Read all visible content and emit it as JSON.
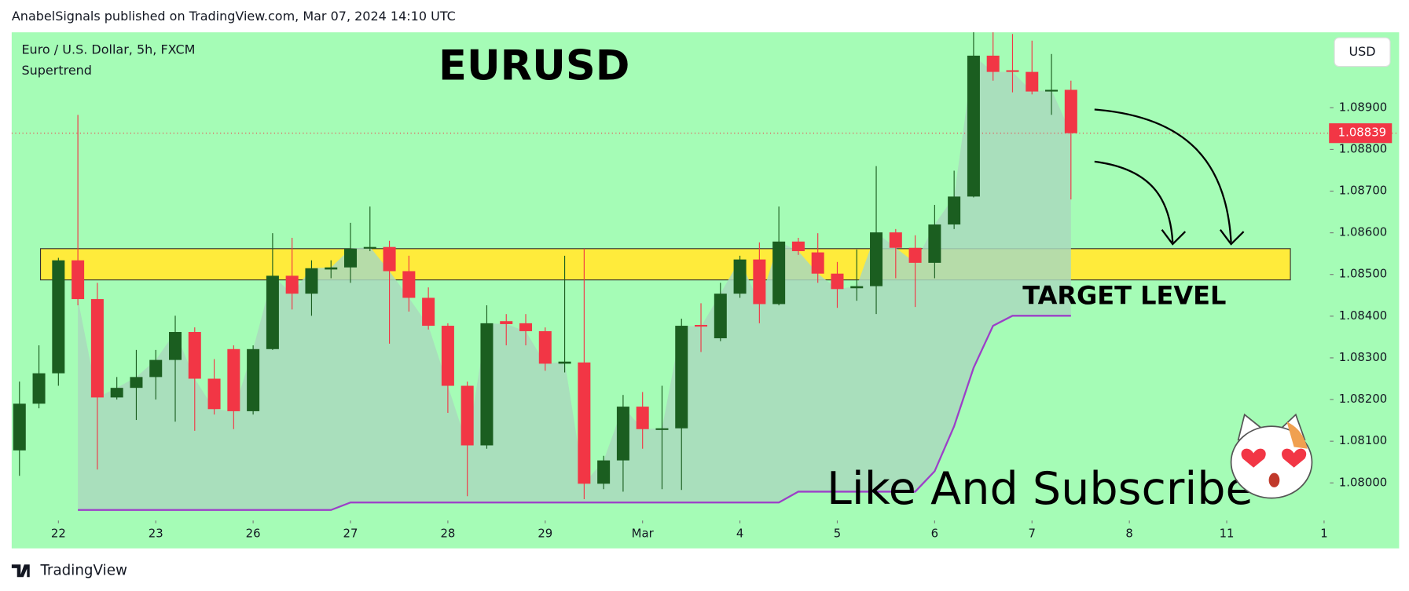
{
  "header": "AnabelSignals published on TradingView.com, Mar 07, 2024 14:10 UTC",
  "footer": "TradingView",
  "currency": "USD",
  "chart_data": {
    "type": "candlestick",
    "title": "EURUSD",
    "subtitle": "Euro / U.S. Dollar, 5h, FXCM",
    "indicator": "Supertrend",
    "annotations": [
      "TARGET LEVEL",
      "Like And Subscribe"
    ],
    "up_color": "#1b5e20",
    "down_color": "#f23645",
    "background": "#a5fcb6",
    "grid": false,
    "x": [
      0,
      1,
      2,
      3,
      4,
      5,
      6,
      7,
      8,
      9,
      10,
      11,
      12,
      13,
      14,
      15,
      16,
      17,
      18,
      19,
      20,
      21,
      22,
      23,
      24,
      25,
      26,
      27,
      28,
      29,
      30,
      31,
      32,
      33,
      34,
      35,
      36,
      37,
      38,
      39,
      40,
      41,
      42,
      43,
      44,
      45,
      46,
      47,
      48,
      49,
      50,
      51,
      52,
      53,
      54
    ],
    "open": [
      1.08078,
      1.0819,
      1.08263,
      1.08534,
      1.08441,
      1.08205,
      1.08228,
      1.08254,
      1.08295,
      1.08362,
      1.0825,
      1.08321,
      1.08172,
      1.08321,
      1.08497,
      1.08454,
      1.08512,
      1.08517,
      1.08562,
      1.08566,
      1.08508,
      1.08444,
      1.08377,
      1.08233,
      1.0809,
      1.08388,
      1.08383,
      1.08364,
      1.08286,
      1.08289,
      1.07998,
      1.08054,
      1.08183,
      1.08127,
      1.08131,
      1.08379,
      1.08347,
      1.08454,
      1.08536,
      1.08429,
      1.08579,
      1.08553,
      1.08502,
      1.08467,
      1.08472,
      1.08601,
      1.08564,
      1.08528,
      1.0862,
      1.08687,
      1.09025,
      1.0899,
      1.08986,
      1.08939,
      1.08943
    ],
    "high": [
      1.08243,
      1.0833,
      1.0854,
      1.08883,
      1.0848,
      1.08254,
      1.08319,
      1.08319,
      1.08401,
      1.08373,
      1.08297,
      1.0833,
      1.0833,
      1.08599,
      1.08588,
      1.08534,
      1.08534,
      1.08624,
      1.08663,
      1.08581,
      1.08545,
      1.08469,
      1.08383,
      1.08243,
      1.08426,
      1.08405,
      1.08405,
      1.08373,
      1.08545,
      1.08562,
      1.08065,
      1.08211,
      1.08218,
      1.08233,
      1.08394,
      1.08431,
      1.0848,
      1.08545,
      1.08577,
      1.08663,
      1.08588,
      1.08599,
      1.0853,
      1.0856,
      1.0876,
      1.08609,
      1.08594,
      1.08667,
      1.08749,
      1.09081,
      1.09081,
      1.09077,
      1.09061,
      1.09029,
      1.08965
    ],
    "low": [
      1.08017,
      1.08179,
      1.08233,
      1.08426,
      1.08032,
      1.082,
      1.08151,
      1.082,
      1.08147,
      1.08125,
      1.08164,
      1.08129,
      1.08164,
      1.08319,
      1.08416,
      1.08401,
      1.08491,
      1.0848,
      1.08556,
      1.08334,
      1.08411,
      1.08368,
      1.08168,
      1.07968,
      1.08082,
      1.0833,
      1.0833,
      1.08269,
      1.08265,
      1.07961,
      1.07985,
      1.07979,
      1.08082,
      1.07985,
      1.07983,
      1.08314,
      1.0834,
      1.08444,
      1.08383,
      1.08426,
      1.08547,
      1.0848,
      1.0842,
      1.08437,
      1.08405,
      1.08491,
      1.08422,
      1.08491,
      1.08609,
      1.08685,
      1.08965,
      1.08937,
      1.08932,
      1.08883,
      1.0868
    ],
    "close": [
      1.0819,
      1.08263,
      1.08534,
      1.08441,
      1.08205,
      1.08228,
      1.08254,
      1.08295,
      1.08362,
      1.0825,
      1.08177,
      1.08172,
      1.08321,
      1.08497,
      1.08454,
      1.08515,
      1.08517,
      1.08562,
      1.08566,
      1.08508,
      1.08444,
      1.08377,
      1.08233,
      1.0809,
      1.08383,
      1.08381,
      1.08364,
      1.08286,
      1.08291,
      1.07998,
      1.08054,
      1.08183,
      1.08129,
      1.08131,
      1.08377,
      1.08375,
      1.08454,
      1.08536,
      1.08429,
      1.08579,
      1.08556,
      1.08502,
      1.08465,
      1.08472,
      1.08601,
      1.08564,
      1.08528,
      1.0862,
      1.08687,
      1.09025,
      1.08986,
      1.08986,
      1.08939,
      1.08943,
      1.08839
    ],
    "last_price_label": "1.08839",
    "series": [
      {
        "name": "Supertrend",
        "color": "#9c3fc8",
        "values": [
          null,
          null,
          null,
          1.07935,
          1.07935,
          1.07935,
          1.07935,
          1.07935,
          1.07935,
          1.07935,
          1.07935,
          1.07935,
          1.07935,
          1.07935,
          1.07935,
          1.07935,
          1.07935,
          1.07953,
          1.07953,
          1.07953,
          1.07953,
          1.07953,
          1.07953,
          1.07953,
          1.07953,
          1.07953,
          1.07953,
          1.07953,
          1.07953,
          1.07953,
          1.07953,
          1.07953,
          1.07953,
          1.07953,
          1.07953,
          1.07953,
          1.07953,
          1.07953,
          1.07953,
          1.07953,
          1.07979,
          1.07979,
          1.07979,
          1.07979,
          1.07979,
          1.07979,
          1.07979,
          1.08028,
          1.08136,
          1.08276,
          1.08377,
          1.08401,
          1.08401,
          1.08401,
          1.08401
        ]
      }
    ],
    "zone": {
      "x": [
        1.08,
        65.27
      ],
      "y": [
        1.08487,
        1.08562
      ],
      "color": "#ffeb3b"
    },
    "xlim": [
      -0.4,
      67.3
    ],
    "ylim": [
      1.07914,
      1.09081
    ],
    "xticks": [
      {
        "value": 2,
        "label": "22"
      },
      {
        "value": 7,
        "label": "23"
      },
      {
        "value": 12,
        "label": "26"
      },
      {
        "value": 17,
        "label": "27"
      },
      {
        "value": 22,
        "label": "28"
      },
      {
        "value": 27,
        "label": "29"
      },
      {
        "value": 32,
        "label": "Mar"
      },
      {
        "value": 37,
        "label": "4"
      },
      {
        "value": 42,
        "label": "5"
      },
      {
        "value": 47,
        "label": "6"
      },
      {
        "value": 52,
        "label": "7"
      },
      {
        "value": 57,
        "label": "8"
      },
      {
        "value": 62,
        "label": "11"
      },
      {
        "value": 67,
        "label": "1"
      }
    ],
    "yticks": [
      {
        "value": 1.08,
        "label": "1.08000"
      },
      {
        "value": 1.081,
        "label": "1.08100"
      },
      {
        "value": 1.082,
        "label": "1.08200"
      },
      {
        "value": 1.083,
        "label": "1.08300"
      },
      {
        "value": 1.084,
        "label": "1.08400"
      },
      {
        "value": 1.085,
        "label": "1.08500"
      },
      {
        "value": 1.086,
        "label": "1.08600"
      },
      {
        "value": 1.087,
        "label": "1.08700"
      },
      {
        "value": 1.088,
        "label": "1.08800"
      },
      {
        "value": 1.089,
        "label": "1.08900"
      }
    ]
  }
}
